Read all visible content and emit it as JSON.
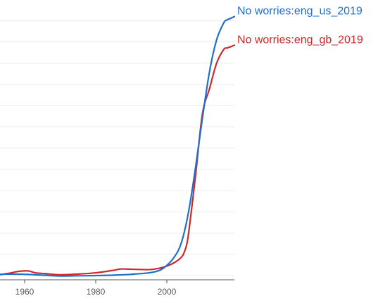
{
  "chart_data": {
    "type": "line",
    "title": "",
    "xlabel": "",
    "ylabel": "",
    "xlim": [
      1953,
      2019
    ],
    "ylim": [
      0,
      12.5
    ],
    "x_ticks": [
      1960,
      1980,
      2000
    ],
    "x_tick_labels": [
      "1960",
      "1980",
      "2000"
    ],
    "grid": "horizontal",
    "y_gridlines": [
      0,
      1,
      2,
      3,
      4,
      5,
      6,
      7,
      8,
      9,
      10,
      11,
      12
    ],
    "legend": "inline-at-line-ends",
    "series": [
      {
        "name": "No worries:eng_us_2019",
        "color": "#1f6fcc",
        "x": [
          1953,
          1956,
          1960,
          1965,
          1970,
          1975,
          1980,
          1985,
          1990,
          1995,
          1998,
          2000,
          2002,
          2004,
          2006,
          2008,
          2010,
          2012,
          2014,
          2016,
          2017,
          2018,
          2019
        ],
        "y": [
          0.06,
          0.07,
          0.06,
          0.02,
          -0.02,
          -0.01,
          0.0,
          0.02,
          0.06,
          0.13,
          0.25,
          0.48,
          0.85,
          1.5,
          2.9,
          5.0,
          7.4,
          9.6,
          11.1,
          11.9,
          12.05,
          12.12,
          12.2
        ]
      },
      {
        "name": "No worries:eng_gb_2019",
        "color": "#cc2a2a",
        "x": [
          1953,
          1956,
          1958,
          1961,
          1963,
          1966,
          1970,
          1975,
          1980,
          1985,
          1987,
          1990,
          1995,
          1998,
          2000,
          2002,
          2004,
          2005,
          2006,
          2008,
          2010,
          2012,
          2014,
          2016,
          2017,
          2018,
          2019
        ],
        "y": [
          0.04,
          0.12,
          0.19,
          0.22,
          0.13,
          0.09,
          0.04,
          0.07,
          0.13,
          0.25,
          0.31,
          0.3,
          0.28,
          0.35,
          0.45,
          0.6,
          0.85,
          1.15,
          1.85,
          4.6,
          7.6,
          8.8,
          10.0,
          10.65,
          10.72,
          10.78,
          10.85
        ]
      }
    ]
  }
}
